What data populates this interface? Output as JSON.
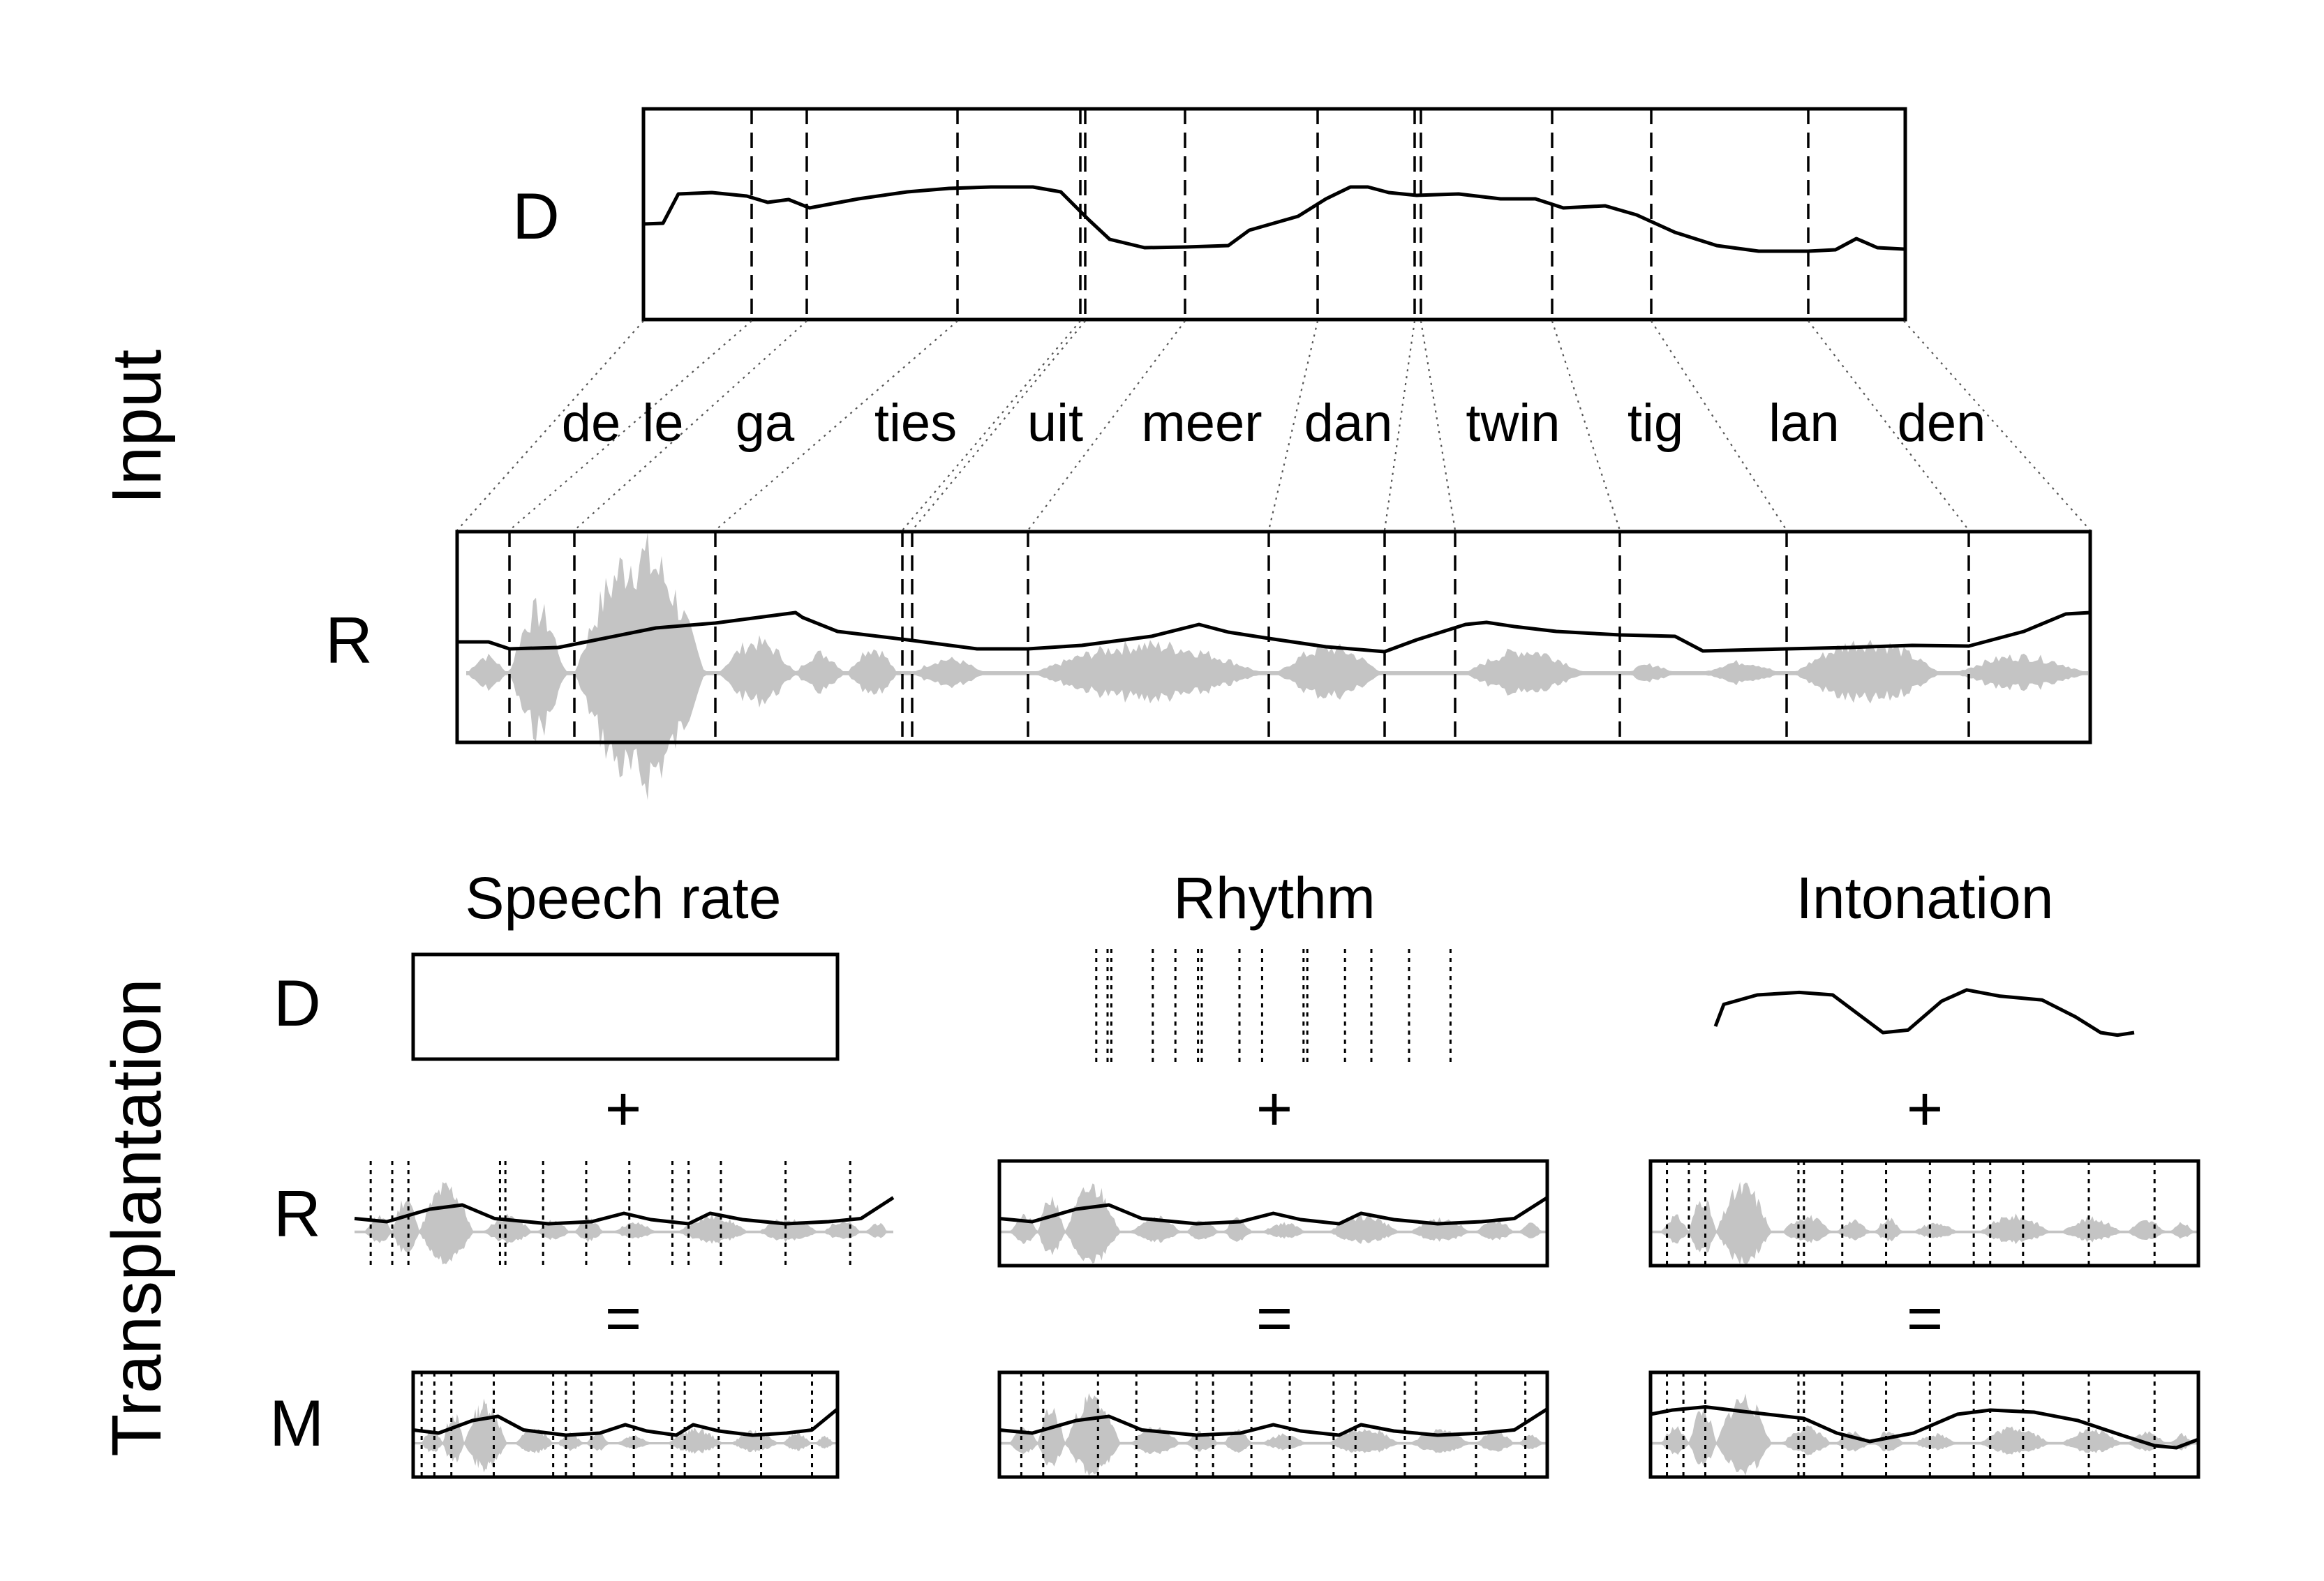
{
  "side_labels": {
    "input": "Input",
    "transplantation": "Transplantation"
  },
  "signal_labels": {
    "donor": "D",
    "recipient": "R",
    "manipulated": "M"
  },
  "syllables": [
    "de",
    "le",
    "ga",
    "ties",
    "uit",
    "meer",
    "dan",
    "twin",
    "tig",
    "lan",
    "den"
  ],
  "columns": [
    {
      "key": "speech_rate",
      "title": "Speech rate"
    },
    {
      "key": "rhythm",
      "title": "Rhythm"
    },
    {
      "key": "intonation",
      "title": "Intonation"
    }
  ],
  "operators": {
    "plus": "+",
    "equals": "="
  },
  "colors": {
    "line": "#000000",
    "waveform": "#c4c4c4",
    "connector": "#555555"
  }
}
